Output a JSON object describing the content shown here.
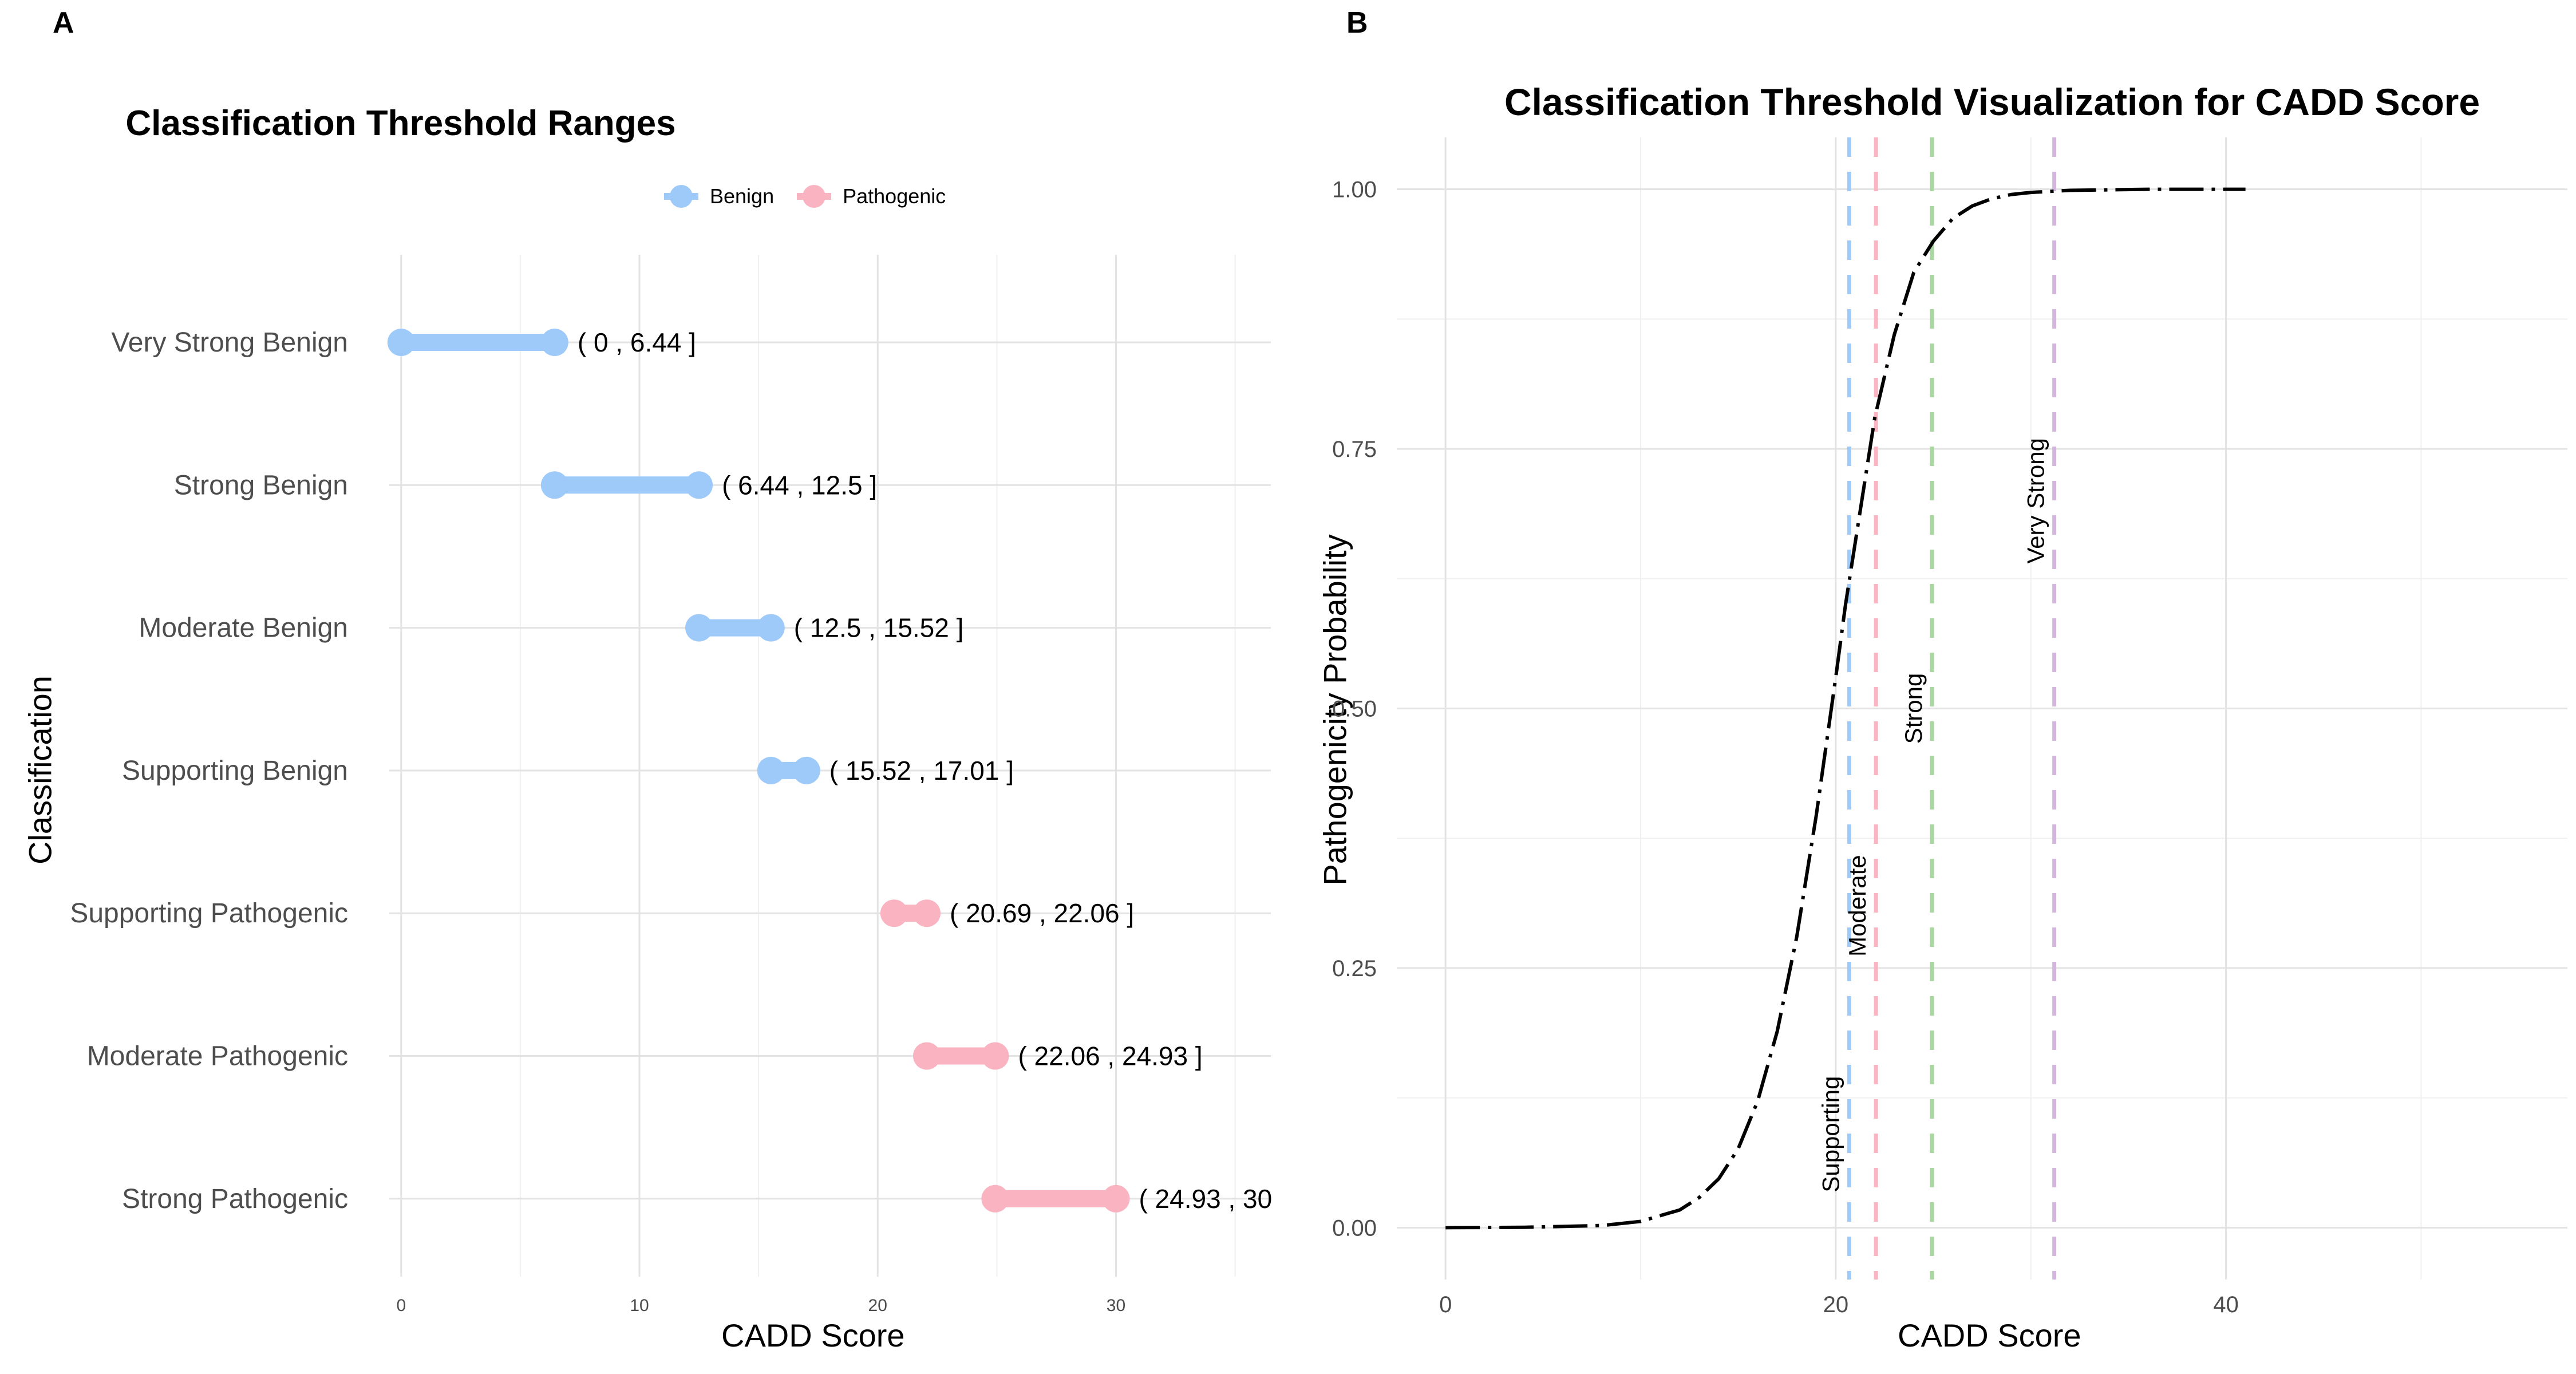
{
  "panels": {
    "a": {
      "letter": "A",
      "title": "Classification Threshold Ranges",
      "xlabel": "CADD Score",
      "ylabel": "Classification",
      "legend": [
        {
          "name": "Benign",
          "color": "#9ECAFA"
        },
        {
          "name": "Pathogenic",
          "color": "#F9B3C1"
        }
      ]
    },
    "b": {
      "letter": "B",
      "title": "Classification Threshold Visualization for CADD Score",
      "xlabel": "CADD Score",
      "ylabel": "Pathogenicity Probability"
    }
  },
  "chart_data": [
    {
      "type": "dumbbell",
      "title": "Classification Threshold Ranges",
      "xlabel": "CADD Score",
      "ylabel": "Classification",
      "xlim": [
        -0.5,
        36.5
      ],
      "x_ticks": [
        0,
        10,
        20,
        30
      ],
      "legend_position": "top",
      "grid": true,
      "categories": [
        "Very Strong Benign",
        "Strong Benign",
        "Moderate Benign",
        "Supporting Benign",
        "Supporting Pathogenic",
        "Moderate Pathogenic",
        "Strong Pathogenic"
      ],
      "ranges": [
        {
          "category": "Very Strong Benign",
          "start": 0,
          "end": 6.44,
          "group": "Benign",
          "label": "( 0 , 6.44 ]"
        },
        {
          "category": "Strong Benign",
          "start": 6.44,
          "end": 12.5,
          "group": "Benign",
          "label": "( 6.44 , 12.5 ]"
        },
        {
          "category": "Moderate Benign",
          "start": 12.5,
          "end": 15.52,
          "group": "Benign",
          "label": "( 12.5 , 15.52 ]"
        },
        {
          "category": "Supporting Benign",
          "start": 15.52,
          "end": 17.01,
          "group": "Benign",
          "label": "( 15.52 , 17.01 ]"
        },
        {
          "category": "Supporting Pathogenic",
          "start": 20.69,
          "end": 22.06,
          "group": "Pathogenic",
          "label": "( 20.69 , 22.06 ]"
        },
        {
          "category": "Moderate Pathogenic",
          "start": 22.06,
          "end": 24.93,
          "group": "Pathogenic",
          "label": "( 22.06 , 24.93 ]"
        },
        {
          "category": "Strong Pathogenic",
          "start": 24.93,
          "end": 30,
          "group": "Pathogenic",
          "label": "( 24.93 , 30"
        }
      ],
      "colors": {
        "Benign": "#9ECAFA",
        "Pathogenic": "#F9B3C1"
      }
    },
    {
      "type": "line",
      "title": "Classification Threshold Visualization for CADD Score",
      "xlabel": "CADD Score",
      "ylabel": "Pathogenicity Probability",
      "xlim": [
        -2.5,
        57.5
      ],
      "ylim": [
        -0.05,
        1.05
      ],
      "x_ticks": [
        0,
        20,
        40
      ],
      "y_ticks": [
        "0.00",
        "0.25",
        "0.50",
        "0.75",
        "1.00"
      ],
      "grid": true,
      "curve": {
        "style": "dashed",
        "color": "#000000",
        "x": [
          0,
          4,
          8,
          10,
          12,
          13,
          14,
          15,
          16,
          17,
          18,
          19,
          20,
          20.5,
          21,
          21.5,
          22,
          23,
          24,
          25,
          26,
          27,
          28,
          29,
          30,
          31,
          32,
          34,
          36,
          38,
          41
        ],
        "y": [
          0.0,
          0.0003,
          0.002,
          0.006,
          0.017,
          0.029,
          0.047,
          0.076,
          0.122,
          0.189,
          0.28,
          0.397,
          0.53,
          0.6,
          0.66,
          0.72,
          0.78,
          0.86,
          0.92,
          0.95,
          0.972,
          0.984,
          0.991,
          0.995,
          0.997,
          0.998,
          0.999,
          0.9995,
          1.0,
          1.0,
          1.0
        ]
      },
      "thresholds": [
        {
          "label": "Supporting",
          "x": 20.69,
          "color": "#9ECAFA"
        },
        {
          "label": "Moderate",
          "x": 22.06,
          "color": "#F9B3C1"
        },
        {
          "label": "Strong",
          "x": 24.93,
          "color": "#A8D8A0"
        },
        {
          "label": "Very Strong",
          "x": 31.2,
          "color": "#D4B5E0"
        }
      ]
    }
  ]
}
